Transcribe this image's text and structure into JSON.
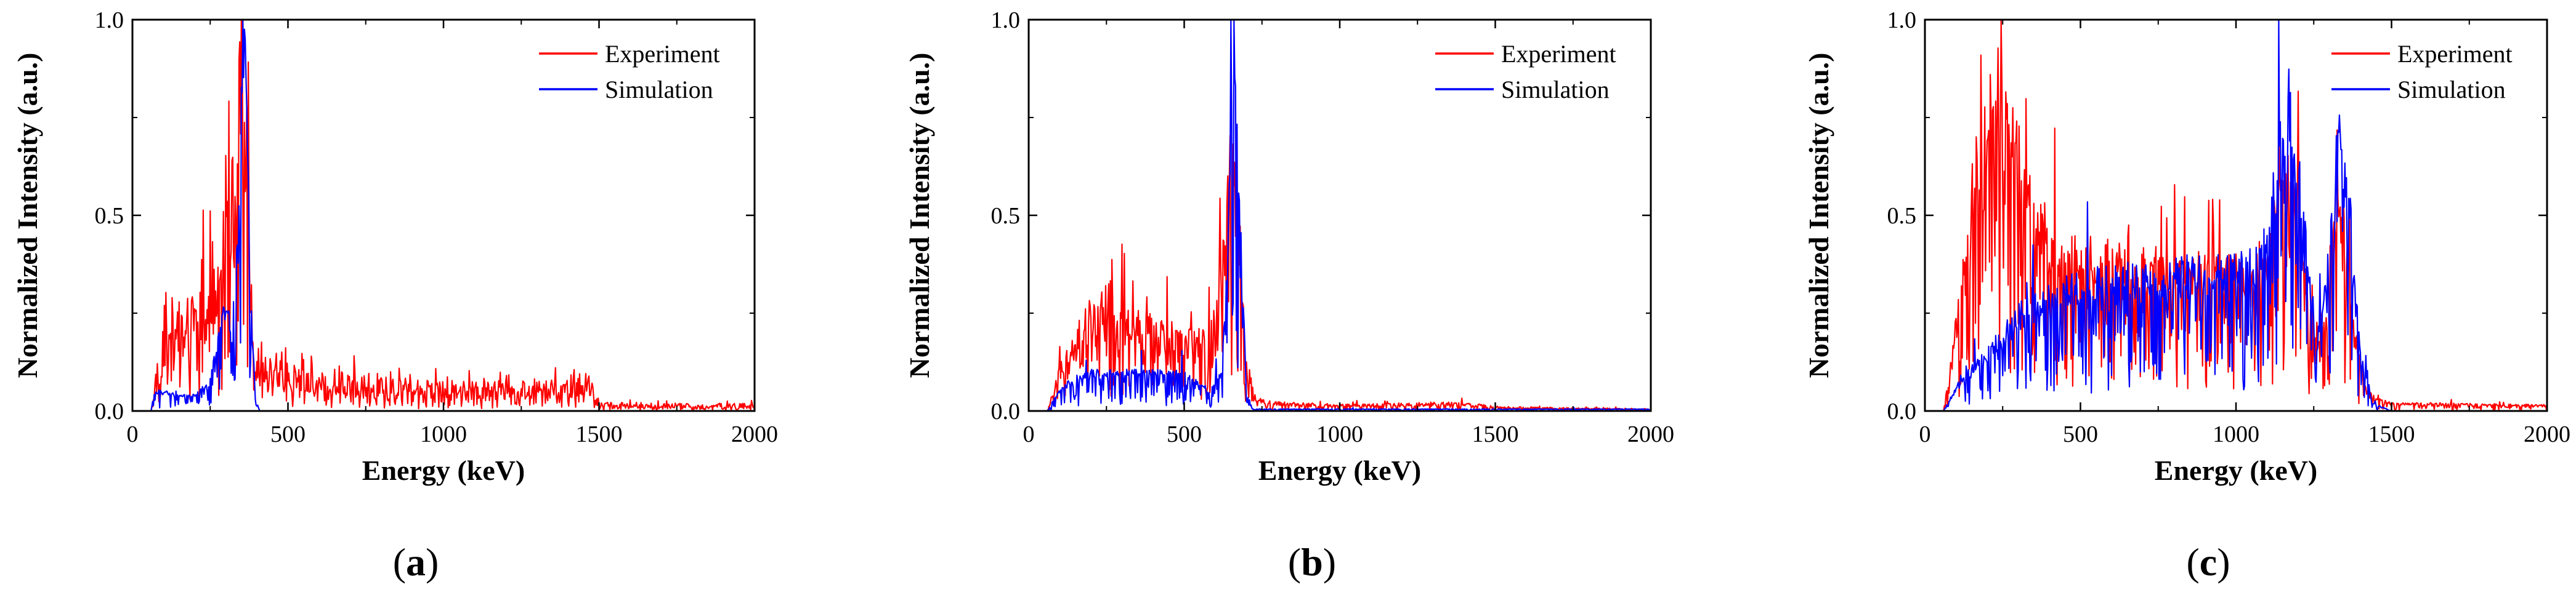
{
  "chart_data": [
    {
      "type": "line",
      "panel": "(a)",
      "panel_letter": "a",
      "xlabel": "Energy (keV)",
      "ylabel": "Normalized Intensity (a.u.)",
      "xlim": [
        0,
        2000
      ],
      "ylim": [
        0,
        1.0
      ],
      "xticks": [
        "0",
        "500",
        "1000",
        "1500",
        "2000"
      ],
      "yticks": [
        "0.0",
        "0.5",
        "1.0"
      ],
      "legend_position": "top-right",
      "series": [
        {
          "name": "Experiment",
          "color": "#ff0000",
          "noise": 0.85,
          "envelope": [
            [
              60,
              0.0
            ],
            [
              75,
              0.08
            ],
            [
              100,
              0.18
            ],
            [
              150,
              0.22
            ],
            [
              200,
              0.26
            ],
            [
              250,
              0.32
            ],
            [
              300,
              0.42
            ],
            [
              330,
              0.55
            ],
            [
              350,
              0.92
            ],
            [
              360,
              0.88
            ],
            [
              380,
              0.35
            ],
            [
              400,
              0.12
            ],
            [
              450,
              0.1
            ],
            [
              500,
              0.1
            ],
            [
              600,
              0.09
            ],
            [
              700,
              0.08
            ],
            [
              800,
              0.07
            ],
            [
              1000,
              0.06
            ],
            [
              1200,
              0.06
            ],
            [
              1400,
              0.07
            ],
            [
              1450,
              0.1
            ],
            [
              1500,
              0.02
            ],
            [
              1700,
              0.015
            ],
            [
              1995,
              0.015
            ],
            [
              2000,
              0.0
            ]
          ]
        },
        {
          "name": "Simulation",
          "color": "#0000ff",
          "noise": 0.2,
          "envelope": [
            [
              60,
              0.0
            ],
            [
              70,
              0.05
            ],
            [
              100,
              0.05
            ],
            [
              150,
              0.04
            ],
            [
              200,
              0.04
            ],
            [
              250,
              0.08
            ],
            [
              300,
              0.28
            ],
            [
              320,
              0.2
            ],
            [
              340,
              0.45
            ],
            [
              355,
              1.0
            ],
            [
              365,
              0.92
            ],
            [
              380,
              0.3
            ],
            [
              395,
              0.03
            ],
            [
              410,
              0.0
            ],
            [
              2000,
              0.0
            ]
          ]
        }
      ]
    },
    {
      "type": "line",
      "panel": "(b)",
      "panel_letter": "b",
      "xlabel": "Energy (keV)",
      "ylabel": "Normalized Intensity (a.u.)",
      "xlim": [
        0,
        2000
      ],
      "ylim": [
        0,
        1.0
      ],
      "xticks": [
        "0",
        "500",
        "1000",
        "1500",
        "2000"
      ],
      "yticks": [
        "0.0",
        "0.5",
        "1.0"
      ],
      "legend_position": "top-right",
      "series": [
        {
          "name": "Experiment",
          "color": "#ff0000",
          "noise": 0.5,
          "envelope": [
            [
              60,
              0.0
            ],
            [
              80,
              0.05
            ],
            [
              120,
              0.15
            ],
            [
              200,
              0.25
            ],
            [
              250,
              0.3
            ],
            [
              300,
              0.24
            ],
            [
              400,
              0.2
            ],
            [
              500,
              0.19
            ],
            [
              600,
              0.22
            ],
            [
              630,
              0.45
            ],
            [
              655,
              0.72
            ],
            [
              670,
              0.55
            ],
            [
              700,
              0.12
            ],
            [
              730,
              0.03
            ],
            [
              800,
              0.02
            ],
            [
              1000,
              0.015
            ],
            [
              1400,
              0.02
            ],
            [
              1500,
              0.01
            ],
            [
              1995,
              0.005
            ],
            [
              2000,
              0.0
            ]
          ]
        },
        {
          "name": "Simulation",
          "color": "#0000ff",
          "noise": 0.18,
          "envelope": [
            [
              60,
              0.0
            ],
            [
              80,
              0.03
            ],
            [
              120,
              0.07
            ],
            [
              200,
              0.1
            ],
            [
              300,
              0.1
            ],
            [
              400,
              0.1
            ],
            [
              500,
              0.1
            ],
            [
              580,
              0.05
            ],
            [
              620,
              0.1
            ],
            [
              640,
              0.4
            ],
            [
              660,
              1.0
            ],
            [
              675,
              0.6
            ],
            [
              700,
              0.05
            ],
            [
              720,
              0.005
            ],
            [
              2000,
              0.005
            ]
          ]
        }
      ]
    },
    {
      "type": "line",
      "panel": "(c)",
      "panel_letter": "c",
      "xlabel": "Energy (keV)",
      "ylabel": "Normalized Intensity (a.u.)",
      "xlim": [
        0,
        2000
      ],
      "ylim": [
        0,
        1.0
      ],
      "xticks": [
        "0",
        "500",
        "1000",
        "1500",
        "2000"
      ],
      "yticks": [
        "0.0",
        "0.5",
        "1.0"
      ],
      "legend_position": "top-right",
      "series": [
        {
          "name": "Experiment",
          "color": "#ff0000",
          "noise": 0.35,
          "envelope": [
            [
              60,
              0.0
            ],
            [
              90,
              0.15
            ],
            [
              130,
              0.45
            ],
            [
              180,
              0.7
            ],
            [
              230,
              0.85
            ],
            [
              280,
              0.75
            ],
            [
              330,
              0.55
            ],
            [
              400,
              0.42
            ],
            [
              500,
              0.4
            ],
            [
              700,
              0.38
            ],
            [
              900,
              0.36
            ],
            [
              1080,
              0.36
            ],
            [
              1130,
              0.5
            ],
            [
              1160,
              0.72
            ],
            [
              1190,
              0.55
            ],
            [
              1250,
              0.18
            ],
            [
              1290,
              0.28
            ],
            [
              1320,
              0.55
            ],
            [
              1345,
              0.5
            ],
            [
              1380,
              0.2
            ],
            [
              1420,
              0.05
            ],
            [
              1500,
              0.02
            ],
            [
              1995,
              0.015
            ],
            [
              2000,
              0.0
            ]
          ]
        },
        {
          "name": "Simulation",
          "color": "#0000ff",
          "noise": 0.3,
          "envelope": [
            [
              60,
              0.0
            ],
            [
              100,
              0.06
            ],
            [
              200,
              0.15
            ],
            [
              300,
              0.25
            ],
            [
              400,
              0.3
            ],
            [
              500,
              0.33
            ],
            [
              700,
              0.35
            ],
            [
              900,
              0.36
            ],
            [
              1080,
              0.38
            ],
            [
              1130,
              0.6
            ],
            [
              1165,
              0.9
            ],
            [
              1195,
              0.65
            ],
            [
              1260,
              0.18
            ],
            [
              1300,
              0.4
            ],
            [
              1330,
              0.72
            ],
            [
              1360,
              0.6
            ],
            [
              1400,
              0.15
            ],
            [
              1440,
              0.02
            ],
            [
              1500,
              0.0
            ],
            [
              2000,
              0.0
            ]
          ]
        }
      ]
    }
  ]
}
